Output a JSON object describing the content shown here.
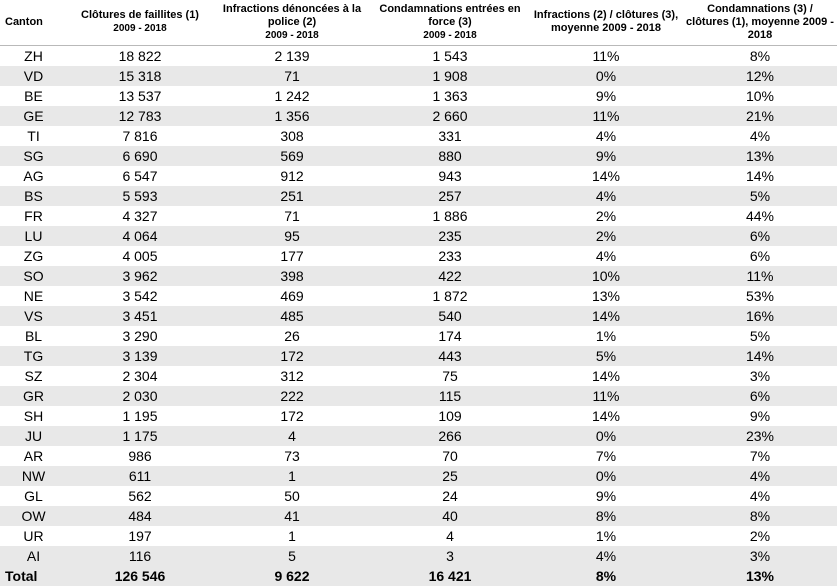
{
  "table": {
    "headers": [
      {
        "label": "Canton",
        "period": ""
      },
      {
        "label": "Clôtures de faillites (1)",
        "period": "2009 - 2018"
      },
      {
        "label": "Infractions dénoncées à la police (2)",
        "period": "2009 - 2018"
      },
      {
        "label": "Condamnations entrées en force (3)",
        "period": "2009 - 2018"
      },
      {
        "label": "Infractions (2) / clôtures (3), moyenne 2009 - 2018",
        "period": ""
      },
      {
        "label": "Condamnations (3) / clôtures (1), moyenne 2009 - 2018",
        "period": ""
      }
    ],
    "rows": [
      [
        "ZH",
        "18 822",
        "2 139",
        "1 543",
        "11%",
        "8%"
      ],
      [
        "VD",
        "15 318",
        "71",
        "1 908",
        "0%",
        "12%"
      ],
      [
        "BE",
        "13 537",
        "1 242",
        "1 363",
        "9%",
        "10%"
      ],
      [
        "GE",
        "12 783",
        "1 356",
        "2 660",
        "11%",
        "21%"
      ],
      [
        "TI",
        "7 816",
        "308",
        "331",
        "4%",
        "4%"
      ],
      [
        "SG",
        "6 690",
        "569",
        "880",
        "9%",
        "13%"
      ],
      [
        "AG",
        "6 547",
        "912",
        "943",
        "14%",
        "14%"
      ],
      [
        "BS",
        "5 593",
        "251",
        "257",
        "4%",
        "5%"
      ],
      [
        "FR",
        "4 327",
        "71",
        "1 886",
        "2%",
        "44%"
      ],
      [
        "LU",
        "4 064",
        "95",
        "235",
        "2%",
        "6%"
      ],
      [
        "ZG",
        "4 005",
        "177",
        "233",
        "4%",
        "6%"
      ],
      [
        "SO",
        "3 962",
        "398",
        "422",
        "10%",
        "11%"
      ],
      [
        "NE",
        "3 542",
        "469",
        "1 872",
        "13%",
        "53%"
      ],
      [
        "VS",
        "3 451",
        "485",
        "540",
        "14%",
        "16%"
      ],
      [
        "BL",
        "3 290",
        "26",
        "174",
        "1%",
        "5%"
      ],
      [
        "TG",
        "3 139",
        "172",
        "443",
        "5%",
        "14%"
      ],
      [
        "SZ",
        "2 304",
        "312",
        "75",
        "14%",
        "3%"
      ],
      [
        "GR",
        "2 030",
        "222",
        "115",
        "11%",
        "6%"
      ],
      [
        "SH",
        "1 195",
        "172",
        "109",
        "14%",
        "9%"
      ],
      [
        "JU",
        "1 175",
        "4",
        "266",
        "0%",
        "23%"
      ],
      [
        "AR",
        "986",
        "73",
        "70",
        "7%",
        "7%"
      ],
      [
        "NW",
        "611",
        "1",
        "25",
        "0%",
        "4%"
      ],
      [
        "GL",
        "562",
        "50",
        "24",
        "9%",
        "4%"
      ],
      [
        "OW",
        "484",
        "41",
        "40",
        "8%",
        "8%"
      ],
      [
        "UR",
        "197",
        "1",
        "4",
        "1%",
        "2%"
      ],
      [
        "AI",
        "116",
        "5",
        "3",
        "4%",
        "3%"
      ]
    ],
    "total": [
      "Total",
      "126 546",
      "9 622",
      "16 421",
      "8%",
      "13%"
    ]
  }
}
